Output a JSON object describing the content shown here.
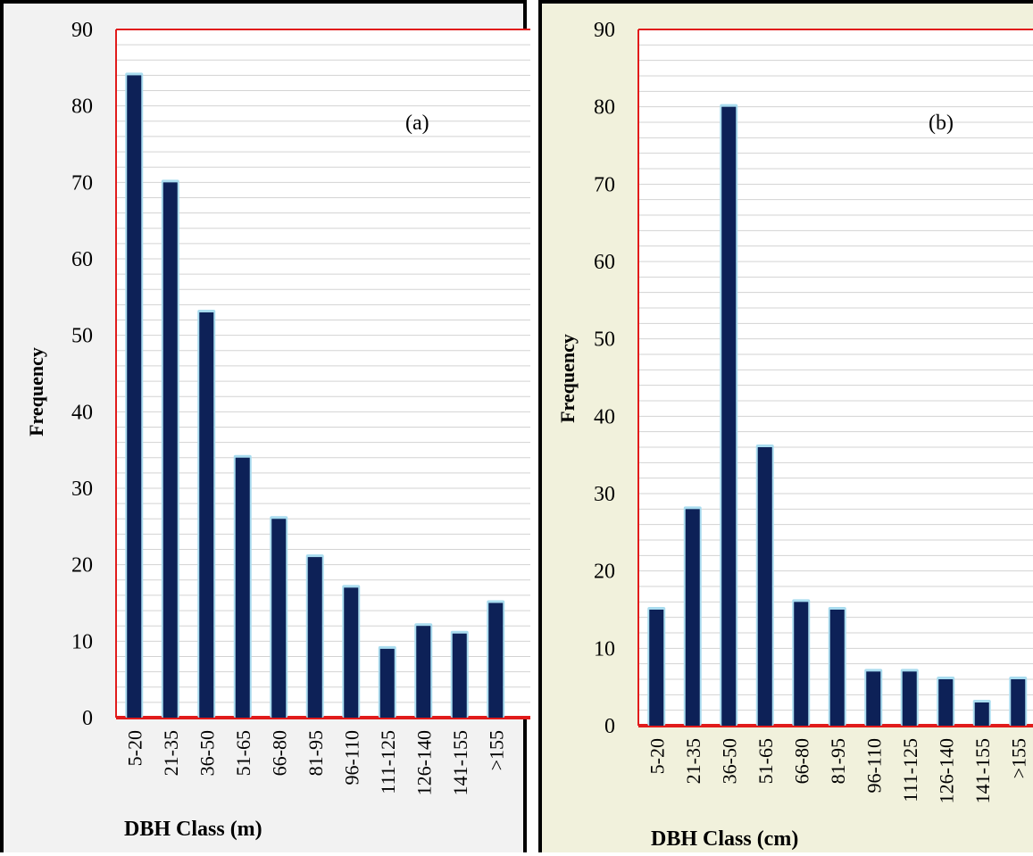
{
  "colors": {
    "bar": "#0d2157",
    "bar_glow": "#a9dcef",
    "frame": "#e11b1b",
    "gridline": "#d3d3d3",
    "panel_a_bg": "#f2f2f2",
    "panel_b_bg": "#f1f1dc"
  },
  "chart_data": [
    {
      "type": "bar",
      "annotation": "(a)",
      "xlabel": "DBH Class (m)",
      "ylabel": "Frequency",
      "ylim": [
        0,
        90
      ],
      "yticks": [
        0,
        10,
        20,
        30,
        40,
        50,
        60,
        70,
        80,
        90
      ],
      "grid": true,
      "categories": [
        "5-20",
        "21-35",
        "36-50",
        "51-65",
        "66-80",
        "81-95",
        "96-110",
        "111-125",
        "126-140",
        "141-155",
        ">155"
      ],
      "values": [
        84,
        70,
        53,
        34,
        26,
        21,
        17,
        9,
        12,
        11,
        15
      ]
    },
    {
      "type": "bar",
      "annotation": "(b)",
      "xlabel": "DBH Class (cm)",
      "ylabel": "Frequency",
      "ylim": [
        0,
        90
      ],
      "yticks": [
        0,
        10,
        20,
        30,
        40,
        50,
        60,
        70,
        80,
        90
      ],
      "grid": true,
      "categories": [
        "5-20",
        "21-35",
        "36-50",
        "51-65",
        "66-80",
        "81-95",
        "96-110",
        "111-125",
        "126-140",
        "141-155",
        ">155"
      ],
      "values": [
        15,
        28,
        80,
        36,
        16,
        15,
        7,
        7,
        6,
        3,
        6
      ]
    }
  ]
}
